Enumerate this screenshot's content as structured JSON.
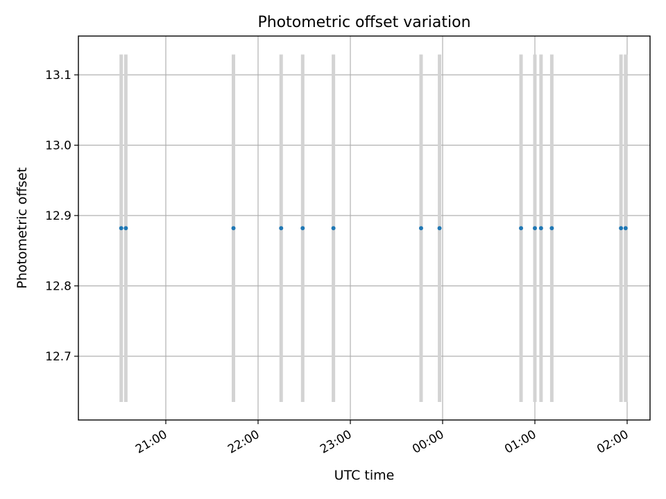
{
  "chart_data": {
    "type": "scatter",
    "title": "Photometric offset variation",
    "xlabel": "UTC time",
    "ylabel": "Photometric offset",
    "x_ticks": [
      "21:00",
      "22:00",
      "23:00",
      "00:00",
      "01:00",
      "02:00"
    ],
    "y_ticks": [
      "12.7",
      "12.8",
      "12.9",
      "13.0",
      "13.1"
    ],
    "grid": true,
    "error_bar_color": "#d3d3d3",
    "point_color": "#1f77b4",
    "points": [
      {
        "x": "20:31",
        "y": 12.882,
        "err": 0.247
      },
      {
        "x": "20:34",
        "y": 12.882,
        "err": 0.247
      },
      {
        "x": "21:44",
        "y": 12.882,
        "err": 0.247
      },
      {
        "x": "22:15",
        "y": 12.882,
        "err": 0.247
      },
      {
        "x": "22:29",
        "y": 12.882,
        "err": 0.247
      },
      {
        "x": "22:49",
        "y": 12.882,
        "err": 0.247
      },
      {
        "x": "23:46",
        "y": 12.882,
        "err": 0.247
      },
      {
        "x": "23:58",
        "y": 12.882,
        "err": 0.247
      },
      {
        "x": "00:51",
        "y": 12.882,
        "err": 0.247
      },
      {
        "x": "01:00",
        "y": 12.882,
        "err": 0.247
      },
      {
        "x": "01:04",
        "y": 12.882,
        "err": 0.247
      },
      {
        "x": "01:11",
        "y": 12.882,
        "err": 0.247
      },
      {
        "x": "01:56",
        "y": 12.882,
        "err": 0.247
      },
      {
        "x": "01:59",
        "y": 12.882,
        "err": 0.247
      }
    ]
  }
}
